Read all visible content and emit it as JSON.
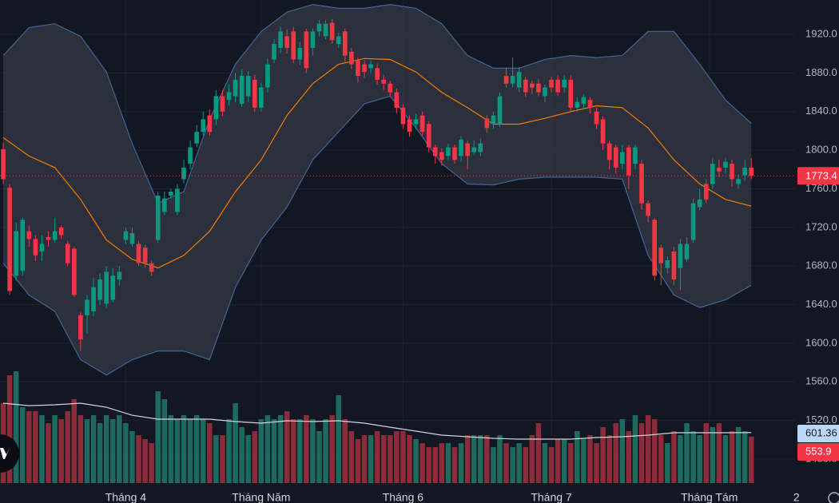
{
  "chart_data": {
    "type": "candlestick",
    "open": [
      1801,
      1761,
      1670,
      1675,
      1716,
      1708,
      1695,
      1710,
      1707,
      1720,
      1703,
      1698,
      1629,
      1629,
      1633,
      1645,
      1641,
      1645,
      1666,
      1707,
      1703,
      1703,
      1699,
      1683,
      1707,
      1736,
      1753,
      1736,
      1770,
      1786,
      1807,
      1819,
      1836,
      1832,
      1856,
      1852,
      1856,
      1848,
      1856,
      1873,
      1844,
      1865,
      1894,
      1906,
      1918,
      1923,
      1894,
      1923,
      1906,
      1923,
      1918,
      1932,
      1910,
      1923,
      1902,
      1893,
      1889,
      1885,
      1885,
      1873,
      1869,
      1860,
      1844,
      1832,
      1827,
      1836,
      1827,
      1803,
      1798,
      1794,
      1803,
      1794,
      1807,
      1798,
      1798,
      1833,
      1827,
      1827,
      1877,
      1869,
      1865,
      1873,
      1869,
      1869,
      1856,
      1873,
      1873,
      1865,
      1873,
      1844,
      1848,
      1852,
      1840,
      1832,
      1807,
      1803,
      1786,
      1803,
      1786,
      1786,
      1745,
      1728,
      1699,
      1678,
      1695,
      1678,
      1687,
      1707,
      1741,
      1765,
      1765,
      1782,
      1782,
      1786,
      1765,
      1774,
      1782
    ],
    "high": [
      1808,
      1765,
      1725,
      1730,
      1722,
      1712,
      1712,
      1716,
      1730,
      1722,
      1706,
      1700,
      1632,
      1650,
      1668,
      1672,
      1680,
      1678,
      1680,
      1720,
      1720,
      1706,
      1702,
      1686,
      1757,
      1757,
      1760,
      1765,
      1790,
      1810,
      1826,
      1840,
      1842,
      1862,
      1862,
      1868,
      1880,
      1884,
      1882,
      1878,
      1870,
      1895,
      1915,
      1928,
      1925,
      1928,
      1912,
      1926,
      1926,
      1935,
      1935,
      1936,
      1922,
      1926,
      1906,
      1896,
      1893,
      1893,
      1890,
      1878,
      1872,
      1864,
      1848,
      1836,
      1838,
      1840,
      1830,
      1806,
      1802,
      1807,
      1806,
      1815,
      1810,
      1810,
      1812,
      1836,
      1840,
      1860,
      1885,
      1896,
      1886,
      1876,
      1872,
      1874,
      1868,
      1876,
      1878,
      1878,
      1878,
      1855,
      1858,
      1855,
      1844,
      1835,
      1810,
      1806,
      1806,
      1806,
      1806,
      1790,
      1748,
      1730,
      1702,
      1690,
      1700,
      1708,
      1710,
      1750,
      1760,
      1770,
      1792,
      1790,
      1792,
      1790,
      1775,
      1790,
      1792
    ],
    "low": [
      1765,
      1650,
      1665,
      1670,
      1700,
      1685,
      1685,
      1700,
      1704,
      1708,
      1680,
      1648,
      1592,
      1610,
      1628,
      1640,
      1636,
      1642,
      1660,
      1703,
      1700,
      1680,
      1678,
      1670,
      1704,
      1733,
      1750,
      1733,
      1766,
      1780,
      1803,
      1815,
      1815,
      1826,
      1835,
      1846,
      1850,
      1845,
      1850,
      1840,
      1840,
      1860,
      1890,
      1900,
      1900,
      1890,
      1888,
      1880,
      1898,
      1918,
      1915,
      1910,
      1906,
      1890,
      1884,
      1870,
      1875,
      1880,
      1868,
      1862,
      1855,
      1838,
      1822,
      1814,
      1822,
      1815,
      1798,
      1786,
      1784,
      1790,
      1786,
      1788,
      1780,
      1795,
      1794,
      1818,
      1822,
      1824,
      1865,
      1865,
      1860,
      1855,
      1858,
      1856,
      1850,
      1860,
      1856,
      1860,
      1840,
      1840,
      1844,
      1838,
      1822,
      1800,
      1780,
      1776,
      1780,
      1760,
      1780,
      1738,
      1725,
      1665,
      1660,
      1672,
      1660,
      1655,
      1684,
      1704,
      1738,
      1745,
      1760,
      1772,
      1776,
      1762,
      1760,
      1768,
      1770
    ],
    "close": [
      1770,
      1654,
      1716,
      1728,
      1708,
      1691,
      1703,
      1707,
      1716,
      1712,
      1683,
      1650,
      1604,
      1645,
      1658,
      1666,
      1674,
      1670,
      1674,
      1716,
      1714,
      1683,
      1683,
      1674,
      1753,
      1750,
      1757,
      1760,
      1782,
      1803,
      1819,
      1832,
      1819,
      1856,
      1840,
      1860,
      1873,
      1877,
      1877,
      1844,
      1865,
      1889,
      1910,
      1923,
      1906,
      1894,
      1906,
      1885,
      1923,
      1931,
      1931,
      1914,
      1918,
      1898,
      1889,
      1877,
      1881,
      1889,
      1873,
      1869,
      1860,
      1844,
      1827,
      1819,
      1832,
      1819,
      1803,
      1794,
      1790,
      1803,
      1790,
      1811,
      1794,
      1803,
      1807,
      1823,
      1836,
      1856,
      1869,
      1877,
      1881,
      1860,
      1865,
      1860,
      1865,
      1865,
      1860,
      1873,
      1844,
      1850,
      1855,
      1844,
      1827,
      1807,
      1790,
      1782,
      1798,
      1774,
      1803,
      1745,
      1732,
      1670,
      1683,
      1686,
      1666,
      1703,
      1703,
      1745,
      1749,
      1749,
      1786,
      1778,
      1788,
      1770,
      1770,
      1782,
      1773.4
    ],
    "up_color": "#089981",
    "down_color": "#f23645",
    "xlim": [
      -0.5,
      129.6
    ],
    "xticks": [
      {
        "value": 19,
        "label": "Tháng 4"
      },
      {
        "value": 40,
        "label": "Tháng Năm"
      },
      {
        "value": 62,
        "label": "Tháng 6"
      },
      {
        "value": 85,
        "label": "Tháng 7"
      },
      {
        "value": 109.5,
        "label": "Tháng Tám"
      },
      {
        "value": 123,
        "label": "2"
      }
    ],
    "ylim": [
      1452.7,
      1955.6
    ],
    "yticks": [
      {
        "value": 1480,
        "label": "1480.0"
      },
      {
        "value": 1520,
        "label": "1520.0"
      },
      {
        "value": 1560,
        "label": "1560.0"
      },
      {
        "value": 1600,
        "label": "1600.0"
      },
      {
        "value": 1640,
        "label": "1640.0"
      },
      {
        "value": 1680,
        "label": "1680.0"
      },
      {
        "value": 1720,
        "label": "1720.0"
      },
      {
        "value": 1760,
        "label": "1760.0"
      },
      {
        "value": 1800,
        "label": "1800.0"
      },
      {
        "value": 1840,
        "label": "1840.0"
      },
      {
        "value": 1880,
        "label": "1880.0"
      },
      {
        "value": 1920,
        "label": "1920.0"
      }
    ],
    "grid": true,
    "overlay_x": [
      0,
      4,
      8,
      12,
      16,
      20,
      24,
      28,
      32,
      36,
      40,
      44,
      48,
      52,
      56,
      60,
      64,
      68,
      72,
      76,
      80,
      84,
      88,
      92,
      96,
      100,
      104,
      108,
      112,
      116
    ],
    "bands": {
      "upper": [
        1898,
        1927,
        1931,
        1918,
        1881,
        1807,
        1745,
        1757,
        1832,
        1889,
        1923,
        1943,
        1951,
        1947,
        1947,
        1951,
        1947,
        1931,
        1898,
        1885,
        1885,
        1894,
        1898,
        1896,
        1898,
        1923,
        1923,
        1889,
        1852,
        1828
      ],
      "middle": [
        1813,
        1794,
        1782,
        1749,
        1707,
        1687,
        1678,
        1691,
        1716,
        1757,
        1790,
        1836,
        1869,
        1889,
        1895,
        1894,
        1881,
        1860,
        1844,
        1827,
        1827,
        1833,
        1840,
        1846,
        1844,
        1823,
        1790,
        1765,
        1749,
        1742
      ],
      "lower": [
        1683,
        1650,
        1633,
        1583,
        1567,
        1583,
        1592,
        1592,
        1583,
        1658,
        1707,
        1741,
        1790,
        1819,
        1848,
        1856,
        1823,
        1786,
        1765,
        1764,
        1770,
        1772,
        1772,
        1772,
        1770,
        1691,
        1650,
        1637,
        1645,
        1660
      ],
      "fill": "#363a47",
      "edge_color": "#3f6496",
      "middle_color": "#f57c00"
    },
    "volume": {
      "values": [
        952,
        1286,
        1333,
        905,
        857,
        857,
        810,
        714,
        810,
        762,
        857,
        1000,
        810,
        762,
        810,
        714,
        810,
        762,
        810,
        714,
        619,
        571,
        524,
        476,
        1095,
        1000,
        810,
        762,
        810,
        762,
        810,
        762,
        714,
        571,
        571,
        762,
        952,
        667,
        571,
        619,
        762,
        810,
        762,
        810,
        857,
        762,
        762,
        810,
        762,
        619,
        762,
        810,
        1048,
        762,
        619,
        524,
        571,
        571,
        619,
        571,
        571,
        619,
        619,
        571,
        524,
        476,
        428,
        428,
        476,
        476,
        428,
        476,
        571,
        571,
        571,
        571,
        428,
        571,
        476,
        428,
        476,
        428,
        571,
        714,
        476,
        428,
        524,
        524,
        476,
        619,
        524,
        571,
        476,
        667,
        571,
        714,
        762,
        619,
        810,
        714,
        810,
        762,
        571,
        476,
        619,
        571,
        714,
        619,
        571,
        714,
        667,
        714,
        571,
        619,
        667,
        619,
        553.9
      ],
      "up_color": "#1e6b5e",
      "down_color": "#8c2b3a",
      "ylim": [
        0,
        5762
      ]
    },
    "volume_ma": {
      "values": [
        952,
        923,
        933,
        952,
        904,
        809,
        762,
        762,
        762,
        733,
        714,
        743,
        733,
        743,
        714,
        666,
        619,
        571,
        552,
        533,
        524,
        524,
        524,
        543,
        552,
        571,
        600,
        600,
        600,
        601.36
      ],
      "color": "#d1d4dc",
      "label_color": "#bbd9f7"
    },
    "last_price_line": true
  }
}
